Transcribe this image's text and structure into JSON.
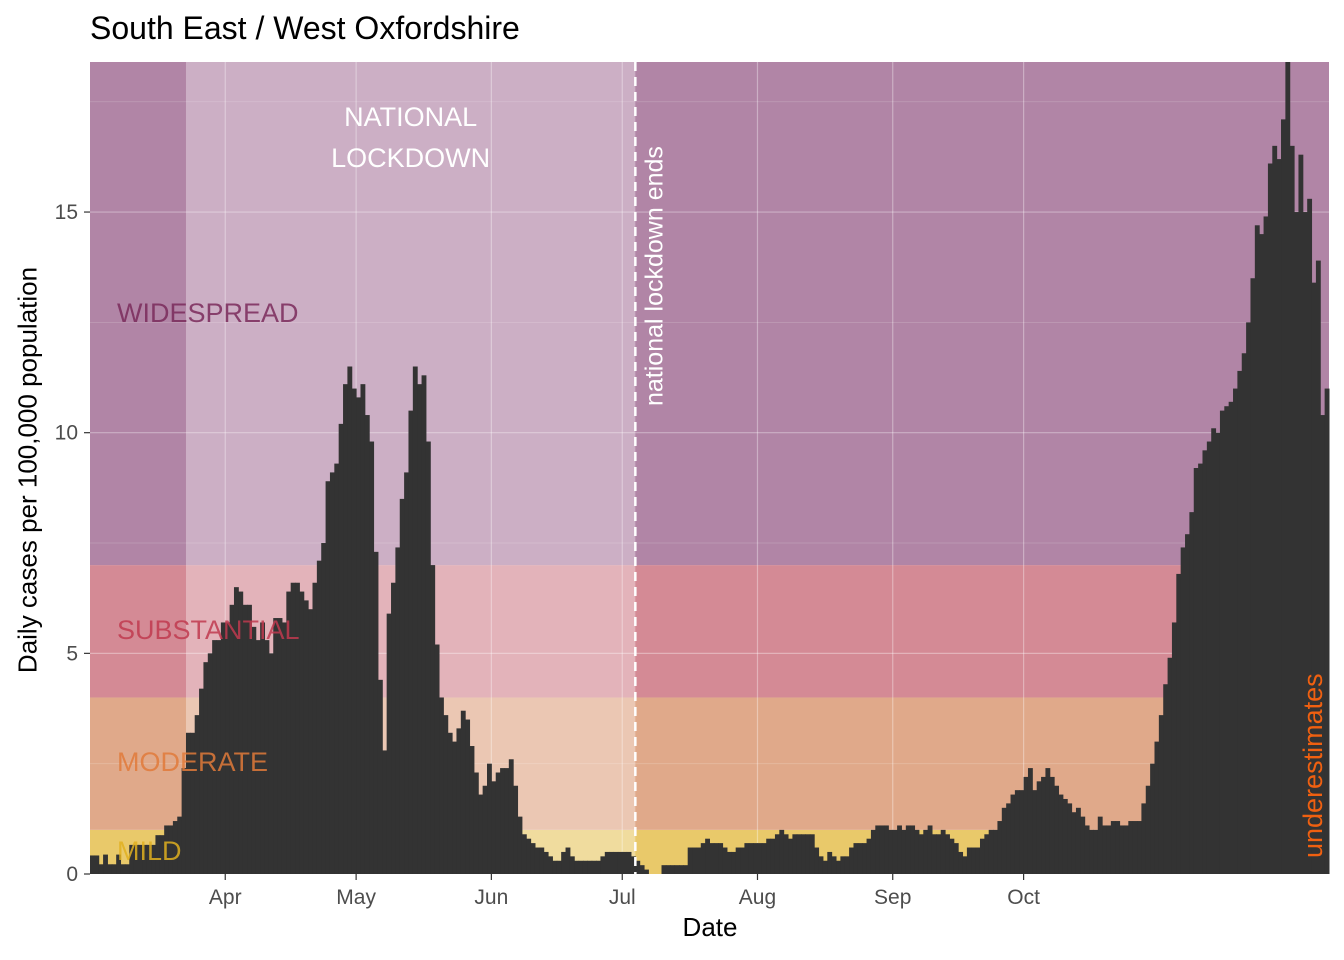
{
  "chart_data": {
    "type": "bar",
    "title": "South East / West Oxfordshire",
    "xlabel": "Date",
    "ylabel": "Daily cases per 100,000 population",
    "x_start": "2020-03-01",
    "ylim": [
      0,
      18.4
    ],
    "y_ticks": [
      "0",
      "5",
      "10",
      "15"
    ],
    "x_ticks": [
      {
        "label": "Apr",
        "date": "2020-04-01"
      },
      {
        "label": "May",
        "date": "2020-05-01"
      },
      {
        "label": "Jun",
        "date": "2020-06-01"
      },
      {
        "label": "Jul",
        "date": "2020-07-01"
      },
      {
        "label": "Aug",
        "date": "2020-08-01"
      },
      {
        "label": "Sep",
        "date": "2020-09-01"
      },
      {
        "label": "Oct",
        "date": "2020-10-01"
      }
    ],
    "grid": true,
    "bands": [
      {
        "label": "MILD",
        "from": 0,
        "to": 1,
        "color": "#e9c96a"
      },
      {
        "label": "MODERATE",
        "from": 1,
        "to": 4,
        "color": "#e0a98a"
      },
      {
        "label": "SUBSTANTIAL",
        "from": 4,
        "to": 7,
        "color": "#d48a95"
      },
      {
        "label": "WIDESPREAD",
        "from": 7,
        "to": 18.4,
        "color": "#b185a6"
      }
    ],
    "lockdown": {
      "label_lines": [
        "NATIONAL",
        "LOCKDOWN"
      ],
      "start": "2020-03-23",
      "end": "2020-07-04"
    },
    "lockdown_end_label": "national lockdown ends",
    "underestimates_label": "underestimates",
    "bar_color": "#333333",
    "values": [
      0.42,
      0.42,
      0.22,
      0.44,
      0.22,
      0.22,
      0.44,
      0.22,
      0.22,
      0.66,
      0.66,
      0.66,
      0.66,
      0.66,
      0.66,
      0.88,
      0.88,
      1.1,
      1.1,
      1.2,
      1.3,
      2.4,
      3.2,
      3.2,
      3.6,
      4.2,
      4.8,
      5.0,
      5.3,
      5.3,
      5.7,
      5.7,
      6.1,
      6.5,
      6.4,
      6.1,
      6.1,
      5.6,
      5.3,
      5.7,
      5.3,
      5.0,
      5.8,
      5.8,
      5.7,
      6.4,
      6.6,
      6.6,
      6.4,
      6.2,
      6.0,
      6.6,
      7.1,
      7.5,
      8.9,
      9.1,
      9.3,
      10.2,
      11.1,
      11.5,
      11.0,
      10.8,
      11.1,
      10.4,
      9.8,
      7.3,
      4.4,
      2.8,
      5.9,
      6.6,
      7.4,
      8.5,
      9.1,
      10.5,
      11.5,
      11.1,
      11.3,
      9.8,
      7.0,
      5.2,
      4.0,
      3.6,
      3.2,
      3.0,
      3.3,
      3.7,
      3.5,
      2.9,
      2.3,
      1.8,
      2.0,
      2.5,
      2.1,
      2.3,
      2.4,
      2.4,
      2.6,
      2.0,
      1.3,
      0.9,
      0.8,
      0.7,
      0.6,
      0.6,
      0.5,
      0.4,
      0.3,
      0.3,
      0.5,
      0.6,
      0.4,
      0.3,
      0.3,
      0.3,
      0.3,
      0.3,
      0.3,
      0.4,
      0.5,
      0.5,
      0.5,
      0.5,
      0.5,
      0.5,
      0.4,
      0.3,
      0.2,
      0.1,
      0.0,
      0.0,
      0.0,
      0.2,
      0.2,
      0.2,
      0.2,
      0.2,
      0.2,
      0.6,
      0.6,
      0.6,
      0.7,
      0.8,
      0.7,
      0.7,
      0.7,
      0.6,
      0.5,
      0.5,
      0.6,
      0.6,
      0.7,
      0.7,
      0.7,
      0.7,
      0.7,
      0.8,
      0.8,
      0.9,
      1.0,
      0.9,
      0.8,
      0.9,
      0.9,
      0.9,
      0.9,
      0.9,
      0.6,
      0.4,
      0.3,
      0.5,
      0.4,
      0.3,
      0.4,
      0.4,
      0.6,
      0.7,
      0.7,
      0.7,
      0.8,
      1.0,
      1.1,
      1.1,
      1.1,
      1.0,
      1.0,
      1.1,
      1.0,
      1.1,
      1.1,
      1.0,
      0.9,
      1.0,
      1.1,
      0.9,
      0.9,
      1.0,
      0.9,
      0.8,
      0.7,
      0.5,
      0.4,
      0.6,
      0.6,
      0.6,
      0.8,
      0.9,
      1.0,
      1.0,
      1.2,
      1.5,
      1.6,
      1.8,
      1.9,
      1.9,
      2.2,
      2.4,
      1.9,
      2.1,
      2.2,
      2.4,
      2.2,
      2.0,
      1.8,
      1.7,
      1.6,
      1.4,
      1.5,
      1.3,
      1.1,
      1.0,
      1.0,
      1.3,
      1.1,
      1.1,
      1.2,
      1.2,
      1.1,
      1.1,
      1.2,
      1.2,
      1.2,
      1.6,
      2.0,
      2.5,
      3.0,
      3.6,
      4.3,
      4.9,
      5.7,
      6.8,
      7.4,
      7.7,
      8.2,
      9.2,
      9.3,
      9.6,
      9.8,
      10.1,
      10.0,
      10.5,
      10.6,
      10.7,
      11.0,
      11.4,
      11.8,
      12.5,
      13.5,
      14.7,
      14.5,
      14.9,
      16.1,
      16.5,
      16.2,
      17.1,
      18.4,
      16.5,
      15.0,
      16.3,
      15.0,
      15.3,
      13.4,
      13.9,
      10.4,
      11.0
    ]
  }
}
